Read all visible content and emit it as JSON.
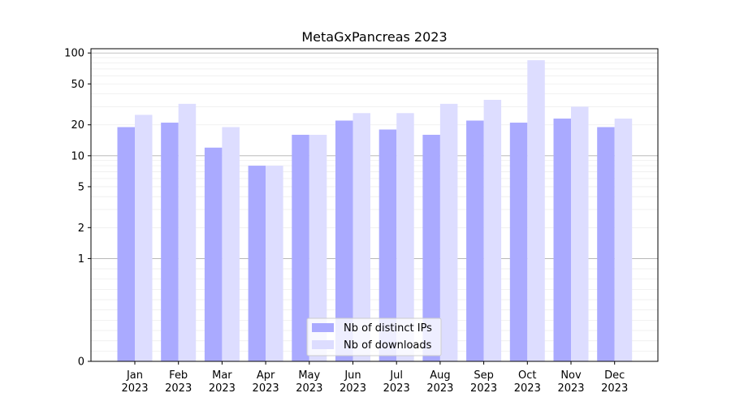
{
  "chart_data": {
    "type": "bar",
    "title": "MetaGxPancreas 2023",
    "xlabel": "",
    "ylabel": "",
    "y_scale": "symlog",
    "ylim": [
      0,
      110
    ],
    "y_ticks": [
      0,
      1,
      2,
      5,
      10,
      20,
      50,
      100
    ],
    "y_tick_labels": [
      "0",
      "1",
      "2",
      "5",
      "10",
      "20",
      "50",
      "100"
    ],
    "categories": [
      "Jan\n2023",
      "Feb\n2023",
      "Mar\n2023",
      "Apr\n2023",
      "May\n2023",
      "Jun\n2023",
      "Jul\n2023",
      "Aug\n2023",
      "Sep\n2023",
      "Oct\n2023",
      "Nov\n2023",
      "Dec\n2023"
    ],
    "category_months": [
      "Jan",
      "Feb",
      "Mar",
      "Apr",
      "May",
      "Jun",
      "Jul",
      "Aug",
      "Sep",
      "Oct",
      "Nov",
      "Dec"
    ],
    "category_year": "2023",
    "series": [
      {
        "name": "Nb of distinct IPs",
        "color": "#aaaaff",
        "values": [
          19,
          21,
          12,
          8,
          16,
          22,
          18,
          16,
          22,
          21,
          23,
          19
        ]
      },
      {
        "name": "Nb of downloads",
        "color": "#ddddff",
        "values": [
          25,
          32,
          19,
          8,
          16,
          26,
          26,
          32,
          35,
          85,
          30,
          23
        ]
      }
    ],
    "grid": true,
    "legend_position": "bottom-center"
  }
}
